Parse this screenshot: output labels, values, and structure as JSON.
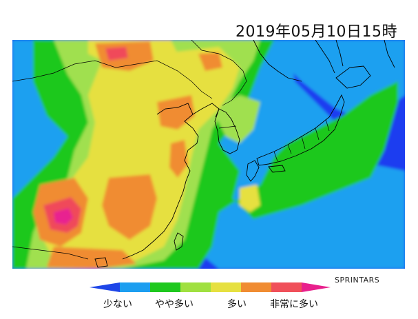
{
  "header": {
    "datetime": "2019年05月10日15時"
  },
  "credit": {
    "text": "SPRINTARS"
  },
  "legend": {
    "colors": [
      "#1e46e8",
      "#1c9ef0",
      "#1ec81e",
      "#a0e040",
      "#e6e040",
      "#f08c32",
      "#f0505a",
      "#e8208c"
    ],
    "labels": [
      "少ない",
      "やや多い",
      "多い",
      "非常に多い"
    ]
  },
  "map": {
    "palette": {
      "very_low": "#1e3cf0",
      "low": "#1ea0f0",
      "medium_low": "#1ec81e",
      "medium": "#a0e050",
      "high": "#e6e040",
      "very_high": "#f08c32",
      "extreme": "#f04a5a",
      "max": "#e82090"
    }
  }
}
